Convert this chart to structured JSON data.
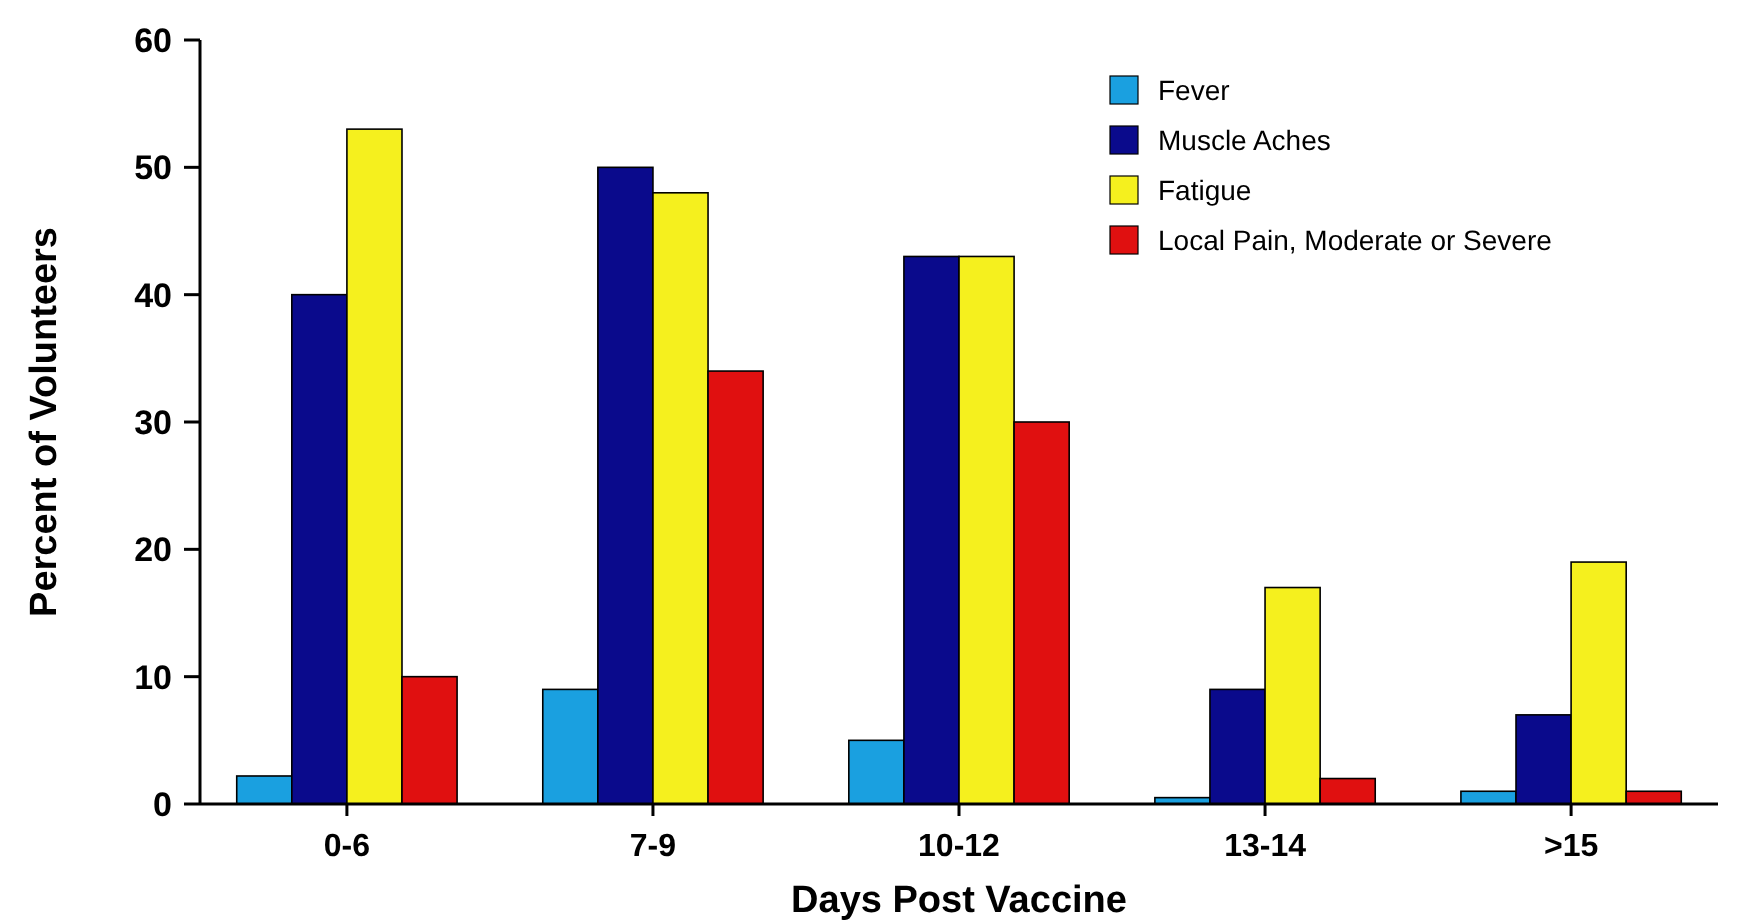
{
  "chart_data": {
    "type": "bar",
    "xlabel": "Days Post Vaccine",
    "ylabel": "Percent of Volunteers",
    "categories": [
      "0-6",
      "7-9",
      "10-12",
      "13-14",
      ">15"
    ],
    "series": [
      {
        "name": "Fever",
        "color": "#1aa0e0",
        "values": [
          2.2,
          9,
          5,
          0.5,
          1
        ]
      },
      {
        "name": "Muscle Aches",
        "color": "#0a0a8c",
        "values": [
          40,
          50,
          43,
          9,
          7
        ]
      },
      {
        "name": "Fatigue",
        "color": "#f5f01e",
        "values": [
          53,
          48,
          43,
          17,
          19
        ]
      },
      {
        "name": "Local Pain, Moderate or Severe",
        "color": "#e01010",
        "values": [
          10,
          34,
          30,
          2,
          1
        ]
      }
    ],
    "ylim": [
      0,
      60
    ],
    "yticks": [
      0,
      10,
      20,
      30,
      40,
      50,
      60
    ],
    "grid": false,
    "legend": "top right"
  }
}
